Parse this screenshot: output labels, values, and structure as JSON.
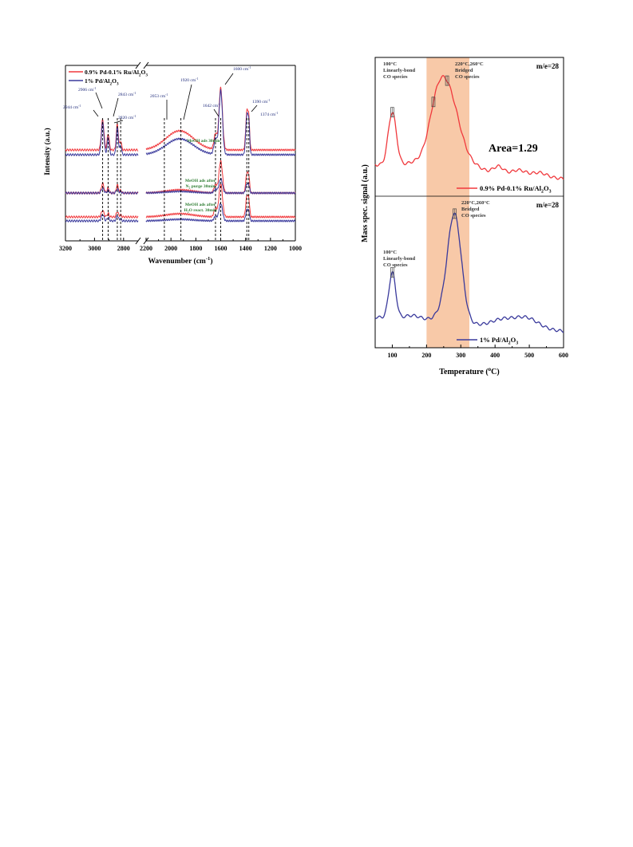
{
  "colors": {
    "red": "#f0393d",
    "blue": "#3a3a9c",
    "green": "#2e7d32",
    "peak_label": "#1e2a7a",
    "band": "#f8c9a8",
    "axis": "#000000"
  },
  "chart_data": [
    {
      "type": "line",
      "subtype": "DRIFTS spectra, broken x-axis",
      "xlabel": "Wavenumber (cm",
      "xlabel_sup": "-1",
      "xlabel_tail": ")",
      "ylabel": "Intensity (a.u.)",
      "x_reversed": true,
      "x_segments": [
        [
          3200,
          2700
        ],
        [
          2200,
          1000
        ]
      ],
      "x_tick_labels": [
        "3200",
        "3000",
        "2800",
        "2200",
        "2000",
        "1800",
        "1600",
        "1400",
        "1200",
        "1000"
      ],
      "legend": {
        "placement": "top-left",
        "entries": [
          {
            "text": "0.9% Pd-0.1% Ru/Al",
            "sub": "2",
            "text2": "O",
            "sub2": "3",
            "color": "red"
          },
          {
            "text": "1% Pd/Al",
            "sub": "2",
            "text2": "O",
            "sub2": "3",
            "color": "blue"
          }
        ]
      },
      "conditions": [
        {
          "line1": "MeOH ads 30min"
        },
        {
          "line1": "MeOH ads after",
          "line2a": "N",
          "line2sub": "2",
          "line2b": " purge 30min"
        },
        {
          "line1": "MeOH ads after",
          "line2a": "H",
          "line2sub": "2",
          "line2b": "O react. 30min"
        }
      ],
      "peak_annotations": [
        {
          "x": 2944,
          "label": "2944 cm",
          "sup": "-1"
        },
        {
          "x": 2906,
          "label": "2906 cm",
          "sup": "-1"
        },
        {
          "x": 2843,
          "label": "2843 cm",
          "sup": "-1"
        },
        {
          "x": 2820,
          "label": "2820 cm",
          "sup": "-1"
        },
        {
          "x": 2053,
          "label": "2053 cm",
          "sup": "-1"
        },
        {
          "x": 1920,
          "label": "1920 cm",
          "sup": "-1"
        },
        {
          "x": 1642,
          "label": "1642 cm",
          "sup": "-1"
        },
        {
          "x": 1600,
          "label": "1600 cm",
          "sup": "-1"
        },
        {
          "x": 1390,
          "label": "1390 cm",
          "sup": "-1"
        },
        {
          "x": 1374,
          "label": "1374 cm",
          "sup": "-1"
        }
      ],
      "dashed_reference_lines_at": [
        2944,
        2906,
        2843,
        2820,
        2053,
        1920,
        1642,
        1600,
        1390,
        1374
      ]
    },
    {
      "type": "line",
      "subtype": "CO-TPD, two stacked panels",
      "xlabel": "Temperature (",
      "xlabel_sup": "o",
      "xlabel_tail": "C)",
      "ylabel": "Mass spec. signal (a.u.)",
      "xlim": [
        50,
        600
      ],
      "x_ticks": [
        100,
        200,
        300,
        400,
        500,
        600
      ],
      "highlight_band": [
        200,
        325
      ],
      "panels": [
        {
          "series_name_pre": "0.9% Pd-0.1% Ru/Al",
          "series_sub1": "2",
          "series_mid": "O",
          "series_sub2": "3",
          "color": "red",
          "me_label": "m/e=28",
          "area_label": "Area=1.29",
          "annot_low": [
            "100°C",
            "Linearly-bond",
            "CO species"
          ],
          "annot_high": [
            "220°C,260°C",
            "Bridged",
            "CO species"
          ],
          "peaks": [
            {
              "x": 100,
              "y": 0.5,
              "w": 12
            },
            {
              "x": 170,
              "y": 0.05,
              "w": 30
            },
            {
              "x": 230,
              "y": 0.48,
              "w": 25
            },
            {
              "x": 268,
              "y": 0.62,
              "w": 30
            },
            {
              "x": 330,
              "y": 0.06,
              "w": 30
            },
            {
              "x": 410,
              "y": 0.07,
              "w": 15
            },
            {
              "x": 470,
              "y": 0.05,
              "w": 20
            },
            {
              "x": 530,
              "y": 0.04,
              "w": 20
            }
          ],
          "baseline_start": 0.16,
          "baseline_end": 0.03,
          "ylim": [
            0,
            1
          ]
        },
        {
          "series_name_pre": "1% Pd/Al",
          "series_sub1": "2",
          "series_mid": "O",
          "series_sub2": "3",
          "color": "blue",
          "me_label": "m/e=28",
          "annot_low": [
            "100°C",
            "Linearly-bond",
            "CO species"
          ],
          "annot_high": [
            "220°C,260°C",
            "Bridged",
            "CO species"
          ],
          "peaks": [
            {
              "x": 100,
              "y": 0.42,
              "w": 10
            },
            {
              "x": 160,
              "y": 0.04,
              "w": 25
            },
            {
              "x": 282,
              "y": 0.95,
              "w": 20
            },
            {
              "x": 255,
              "y": 0.1,
              "w": 25
            },
            {
              "x": 420,
              "y": 0.06,
              "w": 30
            },
            {
              "x": 490,
              "y": 0.1,
              "w": 35
            }
          ],
          "baseline_start": 0.15,
          "baseline_end": 0.02,
          "ylim": [
            0,
            1.1
          ]
        }
      ]
    }
  ]
}
